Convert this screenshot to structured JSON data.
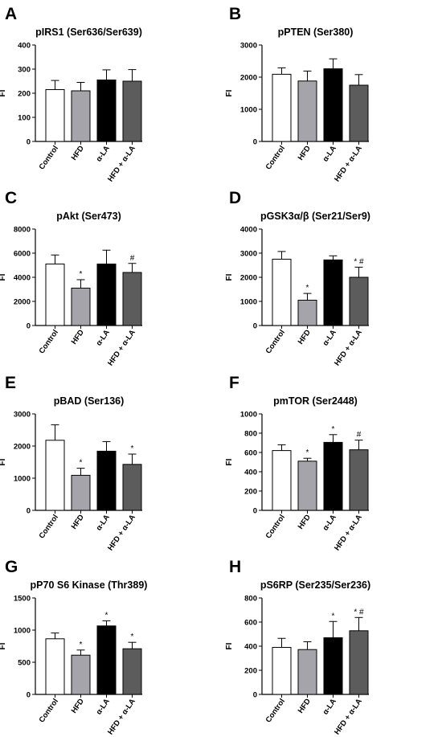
{
  "colors": {
    "control": "#ffffff",
    "hfd": "#a5a4aa",
    "alpha_la": "#000000",
    "hfd_alpha_la": "#5c5c5c"
  },
  "chart_data": [
    {
      "panel": "A",
      "type": "bar",
      "title": "pIRS1 (Ser636/Ser639)",
      "ylabel": "FI",
      "ylim": [
        0,
        400
      ],
      "yticks": [
        0,
        100,
        200,
        300,
        400
      ],
      "categories": [
        "Control",
        "HFD",
        "α-LA",
        "HFD + α-LA"
      ],
      "values": [
        215,
        210,
        255,
        250
      ],
      "errors": [
        38,
        35,
        42,
        48
      ],
      "annotations": [
        "",
        "",
        "",
        ""
      ]
    },
    {
      "panel": "B",
      "type": "bar",
      "title": "pPTEN (Ser380)",
      "ylabel": "FI",
      "ylim": [
        0,
        3000
      ],
      "yticks": [
        0,
        1000,
        2000,
        3000
      ],
      "categories": [
        "Control",
        "HFD",
        "α-LA",
        "HFD + α-LA"
      ],
      "values": [
        2090,
        1880,
        2260,
        1750
      ],
      "errors": [
        200,
        310,
        310,
        330
      ],
      "annotations": [
        "",
        "",
        "",
        ""
      ]
    },
    {
      "panel": "C",
      "type": "bar",
      "title": "pAkt (Ser473)",
      "ylabel": "FI",
      "ylim": [
        0,
        8000
      ],
      "yticks": [
        0,
        2000,
        4000,
        6000,
        8000
      ],
      "categories": [
        "Control",
        "HFD",
        "α-LA",
        "HFD + α-LA"
      ],
      "values": [
        5100,
        3100,
        5100,
        4400
      ],
      "errors": [
        750,
        700,
        1150,
        750
      ],
      "annotations": [
        "",
        "*",
        "",
        "#"
      ]
    },
    {
      "panel": "D",
      "type": "bar",
      "title": "pGSK3α/β (Ser21/Ser9)",
      "ylabel": "FI",
      "ylim": [
        0,
        4000
      ],
      "yticks": [
        0,
        1000,
        2000,
        3000,
        4000
      ],
      "categories": [
        "Control",
        "HFD",
        "α-LA",
        "HFD + α-LA"
      ],
      "values": [
        2750,
        1050,
        2720,
        2000
      ],
      "errors": [
        320,
        280,
        170,
        420
      ],
      "annotations": [
        "",
        "*",
        "",
        "* #"
      ]
    },
    {
      "panel": "E",
      "type": "bar",
      "title": "pBAD (Ser136)",
      "ylabel": "FI",
      "ylim": [
        0,
        3000
      ],
      "yticks": [
        0,
        1000,
        2000,
        3000
      ],
      "categories": [
        "Control",
        "HFD",
        "α-LA",
        "HFD + α-LA"
      ],
      "values": [
        2180,
        1090,
        1840,
        1430
      ],
      "errors": [
        480,
        220,
        300,
        320
      ],
      "annotations": [
        "",
        "*",
        "",
        "*"
      ]
    },
    {
      "panel": "F",
      "type": "bar",
      "title": "pmTOR (Ser2448)",
      "ylabel": "FI",
      "ylim": [
        0,
        1000
      ],
      "yticks": [
        0,
        200,
        400,
        600,
        800,
        1000
      ],
      "categories": [
        "Control",
        "HFD",
        "α-LA",
        "HFD + α-LA"
      ],
      "values": [
        620,
        510,
        705,
        628
      ],
      "errors": [
        60,
        30,
        80,
        100
      ],
      "annotations": [
        "",
        "*",
        "*",
        "#"
      ]
    },
    {
      "panel": "G",
      "type": "bar",
      "title": "pP70 S6 Kinase (Thr389)",
      "ylabel": "FI",
      "ylim": [
        0,
        1500
      ],
      "yticks": [
        0,
        500,
        1000,
        1500
      ],
      "categories": [
        "Control",
        "HFD",
        "α-LA",
        "HFD + α-LA"
      ],
      "values": [
        865,
        610,
        1065,
        710
      ],
      "errors": [
        90,
        80,
        80,
        100
      ],
      "annotations": [
        "",
        "*",
        "*",
        "*"
      ]
    },
    {
      "panel": "H",
      "type": "bar",
      "title": "pS6RP (Ser235/Ser236)",
      "ylabel": "FI",
      "ylim": [
        0,
        800
      ],
      "yticks": [
        0,
        200,
        400,
        600,
        800
      ],
      "categories": [
        "Control",
        "HFD",
        "α-LA",
        "HFD + α-LA"
      ],
      "values": [
        390,
        372,
        470,
        528
      ],
      "errors": [
        75,
        65,
        135,
        110
      ],
      "annotations": [
        "",
        "",
        "*",
        "* #"
      ]
    }
  ]
}
